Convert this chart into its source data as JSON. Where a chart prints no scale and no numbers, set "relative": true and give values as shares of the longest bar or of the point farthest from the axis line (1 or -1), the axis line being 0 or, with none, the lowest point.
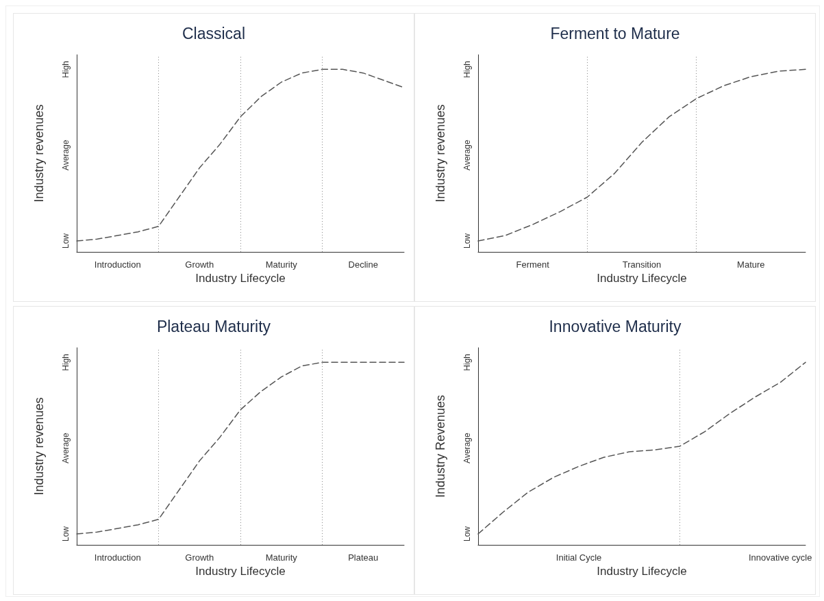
{
  "chart_data": [
    {
      "type": "line",
      "title": "Classical",
      "xlabel": "Industry Lifecycle",
      "ylabel": "Industry revenues",
      "relative": true,
      "categories": [
        null,
        null,
        "Introduction",
        null,
        null,
        null,
        "Growth",
        null,
        null,
        null,
        "Maturity",
        null,
        null,
        null,
        "Decline",
        null,
        null
      ],
      "series": [
        {
          "color": "#555555",
          "values": [
            0.06,
            0.07,
            0.09,
            0.11,
            0.14,
            0.3,
            0.46,
            0.59,
            0.74,
            0.85,
            0.93,
            0.98,
            1,
            1,
            0.98,
            0.94,
            0.9
          ]
        }
      ],
      "annotations": [
        "Low",
        "Average",
        "High"
      ],
      "grid": "x",
      "line_style": "dashed",
      "marker": "none"
    },
    {
      "type": "line",
      "title": "Ferment to Mature",
      "xlabel": "Industry Lifecycle",
      "ylabel": "Industry revenues",
      "relative": true,
      "categories": [
        null,
        null,
        "Ferment",
        null,
        null,
        null,
        "Transition",
        null,
        null,
        null,
        "Mature",
        null,
        null
      ],
      "series": [
        {
          "color": "#555555",
          "values": [
            0.06,
            0.09,
            0.15,
            0.22,
            0.3,
            0.43,
            0.6,
            0.74,
            0.84,
            0.91,
            0.96,
            0.99,
            1
          ]
        }
      ],
      "annotations": [
        "Low",
        "Average",
        "High"
      ],
      "grid": "x",
      "line_style": "dashed",
      "marker": "none"
    },
    {
      "type": "line",
      "title": "Plateau Maturity",
      "xlabel": "Industry Lifecycle",
      "ylabel": "Industry revenues",
      "relative": true,
      "categories": [
        null,
        null,
        "Introduction",
        null,
        null,
        null,
        "Growth",
        null,
        null,
        null,
        "Maturity",
        null,
        null,
        null,
        "Plateau",
        null,
        null
      ],
      "series": [
        {
          "color": "#555555",
          "values": [
            0.06,
            0.07,
            0.09,
            0.11,
            0.14,
            0.3,
            0.46,
            0.59,
            0.74,
            0.84,
            0.92,
            0.98,
            1,
            1,
            1,
            1,
            1
          ]
        }
      ],
      "annotations": [
        "Low",
        "Average",
        "High"
      ],
      "grid": "x",
      "line_style": "dashed",
      "marker": "none"
    },
    {
      "type": "line",
      "title": "Innovative Maturity",
      "xlabel": "Industry Lifecycle",
      "ylabel": "Industry Revenues",
      "relative": true,
      "categories": [
        null,
        null,
        null,
        null,
        "Initial Cycle",
        null,
        null,
        null,
        null,
        null,
        null,
        null,
        "Innovative cycle",
        null
      ],
      "series": [
        {
          "color": "#555555",
          "values": [
            0.06,
            0.18,
            0.29,
            0.37,
            0.43,
            0.48,
            0.51,
            0.52,
            0.54,
            0.62,
            0.72,
            0.81,
            0.89,
            1
          ]
        }
      ],
      "annotations": [
        "Low",
        "Average",
        "High"
      ],
      "grid": "x",
      "line_style": "dashed",
      "marker": "none"
    }
  ]
}
